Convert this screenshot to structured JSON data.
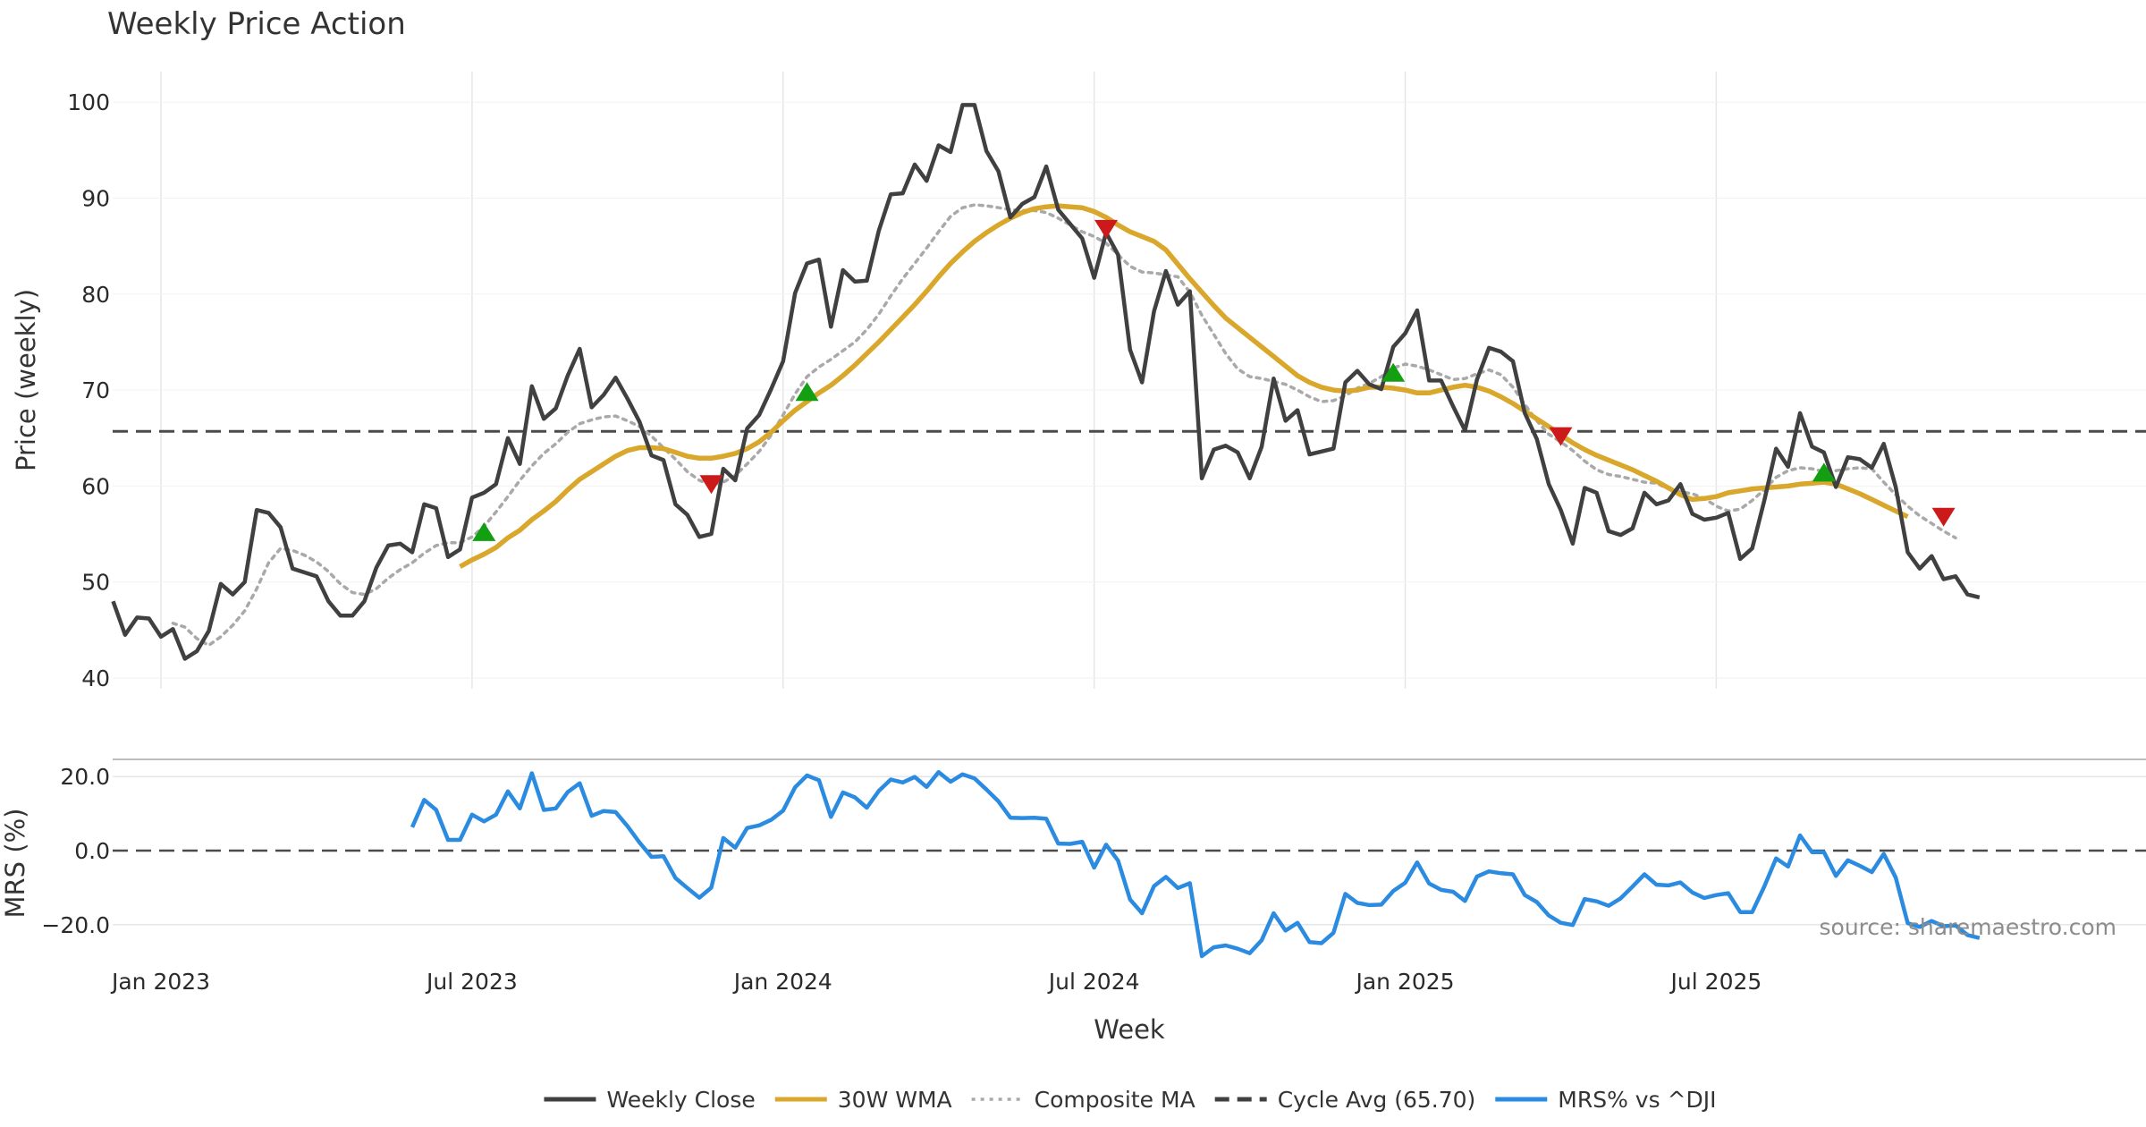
{
  "chart_data": {
    "type": "line",
    "title": "Weekly Price Action",
    "xlabel": "Week",
    "x_tick_labels": [
      "Jan 2023",
      "Jul 2023",
      "Jan 2024",
      "Jul 2024",
      "Jan 2025",
      "Jul 2025"
    ],
    "x_tick_weeks": [
      4,
      30,
      56,
      82,
      108,
      134
    ],
    "price_panel": {
      "ylabel": "Price (weekly)",
      "ylim": [
        38.8,
        102
      ],
      "yticks": [
        40,
        50,
        60,
        70,
        80,
        90,
        100
      ],
      "weekly_close": [
        48.0,
        44.5,
        46.3,
        46.2,
        44.3,
        45.1,
        42.0,
        42.8,
        44.9,
        49.8,
        48.7,
        50.0,
        57.5,
        57.2,
        55.7,
        51.4,
        51.0,
        50.6,
        48.0,
        46.5,
        46.5,
        48.0,
        51.5,
        53.8,
        54.0,
        53.1,
        58.1,
        57.7,
        52.6,
        53.4,
        58.8,
        59.3,
        60.2,
        65.0,
        62.3,
        70.4,
        67.0,
        68.1,
        71.5,
        74.3,
        68.2,
        69.5,
        71.3,
        69.1,
        66.7,
        63.2,
        62.7,
        58.1,
        57.0,
        54.7,
        55.0,
        61.8,
        60.6,
        66.0,
        67.4,
        70.1,
        73.0,
        80.1,
        83.2,
        83.6,
        76.6,
        82.5,
        81.3,
        81.4,
        86.6,
        90.4,
        90.5,
        93.5,
        91.8,
        95.5,
        94.8,
        99.7,
        99.7,
        94.9,
        92.8,
        88.0,
        89.4,
        90.1,
        93.3,
        88.8,
        87.3,
        85.8,
        81.7,
        86.4,
        84.1,
        74.2,
        70.8,
        78.2,
        82.4,
        78.9,
        80.3,
        60.8,
        63.8,
        64.2,
        63.5,
        60.8,
        64.1,
        71.2,
        66.8,
        67.9,
        63.3,
        63.6,
        63.9,
        70.8,
        72.0,
        70.6,
        70.1,
        74.5,
        75.9,
        78.3,
        71.0,
        71.0,
        68.3,
        65.8,
        71.1,
        74.4,
        74.0,
        73.0,
        67.6,
        64.9,
        60.2,
        57.5,
        54.0,
        59.8,
        59.3,
        55.3,
        54.9,
        55.6,
        59.3,
        58.1,
        58.5,
        60.2,
        57.1,
        56.5,
        56.7,
        57.2,
        52.4,
        53.5,
        58.4,
        63.9,
        62.0,
        67.6,
        64.1,
        63.5,
        59.9,
        63.0,
        62.8,
        61.9,
        64.4,
        59.9,
        53.1,
        51.4,
        52.7,
        50.3,
        50.6,
        48.7,
        48.4
      ],
      "wma_30w": [
        null,
        null,
        null,
        null,
        null,
        null,
        null,
        null,
        null,
        null,
        null,
        null,
        null,
        null,
        null,
        null,
        null,
        null,
        null,
        null,
        null,
        null,
        null,
        null,
        null,
        null,
        null,
        null,
        null,
        51.6,
        52.3,
        52.9,
        53.6,
        54.6,
        55.4,
        56.5,
        57.4,
        58.4,
        59.6,
        60.7,
        61.5,
        62.3,
        63.1,
        63.7,
        64.0,
        64.0,
        63.9,
        63.5,
        63.1,
        62.9,
        62.9,
        63.1,
        63.4,
        63.9,
        64.6,
        65.6,
        66.8,
        67.9,
        68.8,
        69.7,
        70.5,
        71.5,
        72.6,
        73.8,
        75.0,
        76.3,
        77.6,
        78.9,
        80.3,
        81.8,
        83.2,
        84.4,
        85.5,
        86.4,
        87.2,
        87.9,
        88.5,
        88.9,
        89.1,
        89.2,
        89.1,
        89.0,
        88.6,
        88.0,
        87.2,
        86.5,
        86.0,
        85.5,
        84.6,
        83.1,
        81.6,
        80.2,
        78.8,
        77.5,
        76.5,
        75.5,
        74.5,
        73.5,
        72.5,
        71.5,
        70.8,
        70.3,
        70.0,
        69.9,
        70.0,
        70.3,
        70.3,
        70.2,
        70.0,
        69.7,
        69.7,
        70.0,
        70.3,
        70.5,
        70.3,
        69.9,
        69.3,
        68.6,
        67.8,
        67.0,
        66.2,
        65.3,
        64.5,
        63.8,
        63.2,
        62.7,
        62.2,
        61.7,
        61.1,
        60.5,
        59.8,
        59.1,
        58.6,
        58.7,
        58.9,
        59.3,
        59.5,
        59.7,
        59.8,
        59.9,
        60.0,
        60.2,
        60.3,
        60.4,
        60.2,
        59.7,
        59.2,
        58.6,
        58.0,
        57.4,
        56.8
      ],
      "composite_ma": [
        null,
        null,
        null,
        null,
        null,
        45.7,
        45.3,
        44.1,
        43.4,
        44.3,
        45.5,
        47.0,
        49.3,
        52.0,
        53.5,
        53.3,
        52.8,
        52.1,
        51.1,
        49.8,
        48.9,
        48.7,
        49.3,
        50.4,
        51.3,
        52.0,
        53.0,
        53.8,
        54.1,
        54.1,
        54.7,
        55.8,
        57.3,
        58.9,
        60.6,
        62.1,
        63.4,
        64.4,
        65.6,
        66.5,
        66.9,
        67.2,
        67.3,
        66.8,
        66.2,
        65.2,
        64.0,
        62.8,
        61.5,
        60.6,
        60.1,
        60.4,
        61.1,
        62.3,
        63.6,
        65.3,
        67.4,
        69.6,
        71.4,
        72.4,
        73.2,
        74.1,
        75.0,
        76.3,
        77.9,
        79.8,
        81.6,
        83.2,
        84.8,
        86.5,
        88.1,
        89.0,
        89.3,
        89.2,
        89.0,
        88.8,
        88.7,
        88.7,
        88.5,
        87.9,
        87.2,
        86.5,
        86.0,
        85.3,
        84.1,
        82.9,
        82.3,
        82.2,
        82.0,
        81.8,
        80.2,
        77.8,
        75.8,
        73.8,
        72.2,
        71.4,
        71.2,
        70.9,
        70.6,
        70.0,
        69.3,
        68.8,
        68.9,
        69.4,
        70.2,
        70.7,
        71.4,
        72.3,
        72.7,
        72.5,
        72.1,
        71.6,
        71.1,
        71.2,
        71.7,
        72.1,
        71.6,
        70.3,
        68.5,
        66.8,
        65.4,
        64.6,
        63.7,
        62.6,
        61.7,
        61.2,
        61.0,
        60.7,
        60.4,
        60.3,
        59.7,
        59.4,
        59.2,
        58.7,
        57.9,
        57.4,
        57.6,
        58.5,
        59.6,
        60.9,
        61.6,
        61.9,
        61.8,
        61.5,
        61.6,
        61.8,
        61.9,
        61.8,
        60.4,
        59.1,
        57.9,
        56.9,
        56.1,
        55.3,
        54.6
      ],
      "cycle_avg": 65.7,
      "buy_signals": [
        {
          "week": 31,
          "price": 55.2
        },
        {
          "week": 58,
          "price": 69.8
        },
        {
          "week": 107,
          "price": 71.8
        },
        {
          "week": 143,
          "price": 61.4
        }
      ],
      "sell_signals": [
        {
          "week": 50,
          "price": 60.2
        },
        {
          "week": 83,
          "price": 86.8
        },
        {
          "week": 121,
          "price": 65.2
        },
        {
          "week": 153,
          "price": 56.8
        }
      ]
    },
    "mrs_panel": {
      "ylabel": "MRS (%)",
      "ylim": [
        -30,
        25
      ],
      "yticks": [
        20,
        0,
        -20
      ],
      "ytick_labels": [
        "20.0",
        "0.0",
        "−20.0"
      ],
      "zero_line": 0,
      "start_week": 25,
      "mrs_vs_dji": [
        6.3,
        13.7,
        11.0,
        2.9,
        2.9,
        9.7,
        7.9,
        9.7,
        16.0,
        11.4,
        20.9,
        11.0,
        11.4,
        15.8,
        18.2,
        9.4,
        10.7,
        10.4,
        6.6,
        2.2,
        -1.7,
        -1.5,
        -7.4,
        -10.1,
        -12.7,
        -10.0,
        3.4,
        0.8,
        6.1,
        6.8,
        8.3,
        10.8,
        17.1,
        20.3,
        19.0,
        9.1,
        15.7,
        14.4,
        11.6,
        16.1,
        19.2,
        18.4,
        19.9,
        17.2,
        21.2,
        18.6,
        20.6,
        19.5,
        16.5,
        13.3,
        8.9,
        8.8,
        8.9,
        8.6,
        1.9,
        1.8,
        2.4,
        -4.6,
        1.6,
        -2.7,
        -13.2,
        -16.9,
        -9.6,
        -7.1,
        -10.1,
        -8.8,
        -28.5,
        -26.1,
        -25.6,
        -26.5,
        -27.7,
        -24.2,
        -16.9,
        -21.6,
        -19.5,
        -24.7,
        -25.0,
        -22.2,
        -11.7,
        -14.1,
        -14.7,
        -14.6,
        -10.9,
        -8.7,
        -3.2,
        -8.9,
        -10.6,
        -11.1,
        -13.6,
        -7.0,
        -5.6,
        -6.1,
        -6.4,
        -12.0,
        -13.9,
        -17.5,
        -19.5,
        -20.1,
        -13.1,
        -13.7,
        -14.9,
        -12.9,
        -9.7,
        -6.4,
        -9.2,
        -9.4,
        -8.6,
        -11.3,
        -12.8,
        -12.0,
        -11.5,
        -16.6,
        -16.6,
        -9.8,
        -2.1,
        -4.3,
        4.1,
        -0.4,
        -0.4,
        -6.8,
        -2.6,
        -4.1,
        -5.8,
        -0.9,
        -7.3,
        -19.6,
        -20.6,
        -19.0,
        -20.4,
        -20.2,
        -22.8,
        -23.6
      ]
    },
    "legend": [
      {
        "label": "Weekly Close",
        "color": "#404040",
        "style": "solid"
      },
      {
        "label": "30W WMA",
        "color": "#d9a72b",
        "style": "solid"
      },
      {
        "label": "Composite MA",
        "color": "#a9a9a9",
        "style": "dotted"
      },
      {
        "label": "Cycle Avg (65.70)",
        "color": "#404040",
        "style": "dashed"
      },
      {
        "label": "MRS% vs ^DJI",
        "color": "#2b8be0",
        "style": "solid"
      }
    ],
    "source": "source: sharemaestro.com",
    "colors": {
      "close": "#404040",
      "wma": "#d9a72b",
      "composite": "#a9a9a9",
      "cycle": "#4a4a4a",
      "mrs": "#2b8be0",
      "buy": "#12a012",
      "sell": "#cc1a1a",
      "grid": "#e6e6e6"
    }
  }
}
